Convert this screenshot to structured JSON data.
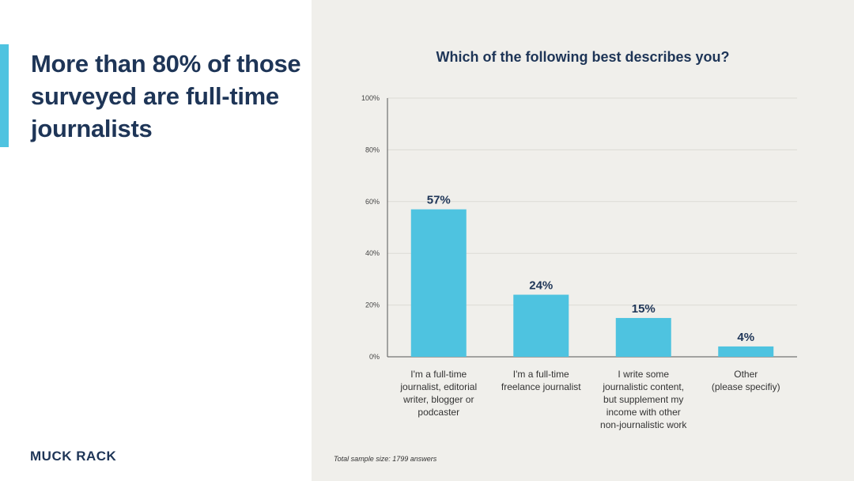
{
  "headline": "More than 80% of those surveyed are full-time journalists",
  "logo": "MUCK RACK",
  "footnote": "Total sample size: 1799 answers",
  "colors": {
    "accent": "#4ec3e0",
    "bar": "#4ec3e0",
    "navy": "#1e3557",
    "panel_bg": "#f0efeb"
  },
  "chart_data": {
    "type": "bar",
    "title": "Which of the following best describes you?",
    "categories": [
      [
        "I'm a full-time",
        "journalist, editorial",
        "writer, blogger or",
        "podcaster"
      ],
      [
        "I'm a full-time",
        "freelance journalist"
      ],
      [
        "I write some",
        "journalistic content,",
        "but supplement my",
        "income with other",
        "non-journalistic work"
      ],
      [
        "Other",
        "(please specifiy)"
      ]
    ],
    "values": [
      57,
      24,
      15,
      4
    ],
    "value_labels": [
      "57%",
      "24%",
      "15%",
      "4%"
    ],
    "ylim": [
      0,
      100
    ],
    "yticks": [
      0,
      20,
      40,
      60,
      80,
      100
    ],
    "ytick_labels": [
      "0%",
      "20%",
      "40%",
      "60%",
      "80%",
      "100%"
    ],
    "xlabel": "",
    "ylabel": "",
    "grid": true
  }
}
